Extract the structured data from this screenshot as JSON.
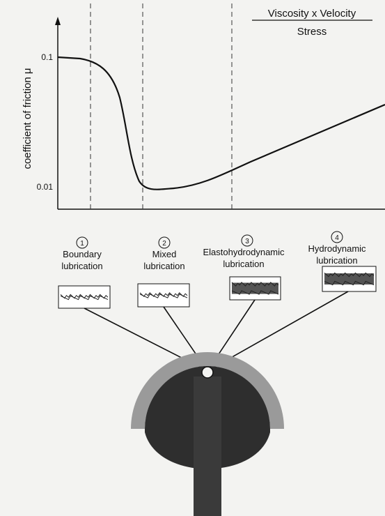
{
  "header": {
    "title": "Viscosity x Velocity",
    "subtitle": "Stress"
  },
  "axis": {
    "y_label": "coefficient of friction μ",
    "ticks": [
      "0.1",
      "0.01"
    ]
  },
  "regions": [
    {
      "number": "1",
      "label": [
        "Boundary",
        "lubrication"
      ]
    },
    {
      "number": "2",
      "label": [
        "Mixed",
        "lubrication"
      ]
    },
    {
      "number": "3",
      "label": [
        "Elastohydrodynamic",
        "lubrication"
      ]
    },
    {
      "number": "4",
      "label": [
        "Hydrodynamic",
        "lubrication"
      ]
    }
  ]
}
